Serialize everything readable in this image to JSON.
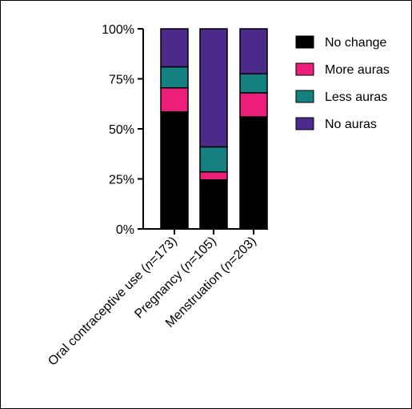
{
  "chart_data": {
    "type": "bar",
    "stacked": true,
    "title": "",
    "xlabel": "",
    "ylabel": "",
    "ylim": [
      0,
      100
    ],
    "y_ticks": [
      "0%",
      "25%",
      "50%",
      "75%",
      "100%"
    ],
    "y_tick_values": [
      0,
      25,
      50,
      75,
      100
    ],
    "categories": [
      {
        "prefix": "Oral contraceptive use (",
        "n": "n",
        "suffix": "=173)"
      },
      {
        "prefix": "Pregnancy (",
        "n": "n",
        "suffix": "=105)"
      },
      {
        "prefix": "Menstruation (",
        "n": "n",
        "suffix": "=203)"
      }
    ],
    "series": [
      {
        "name": "No change",
        "color": "#000000",
        "values": [
          58.5,
          24.5,
          56
        ]
      },
      {
        "name": "More auras",
        "color": "#ec1e79",
        "values": [
          12,
          4,
          12
        ]
      },
      {
        "name": "Less auras",
        "color": "#14807f",
        "values": [
          10.5,
          12.5,
          9.5
        ]
      },
      {
        "name": "No auras",
        "color": "#4b2a8a",
        "values": [
          19,
          59,
          22.5
        ]
      }
    ],
    "legend_position": "right",
    "grid": false
  }
}
